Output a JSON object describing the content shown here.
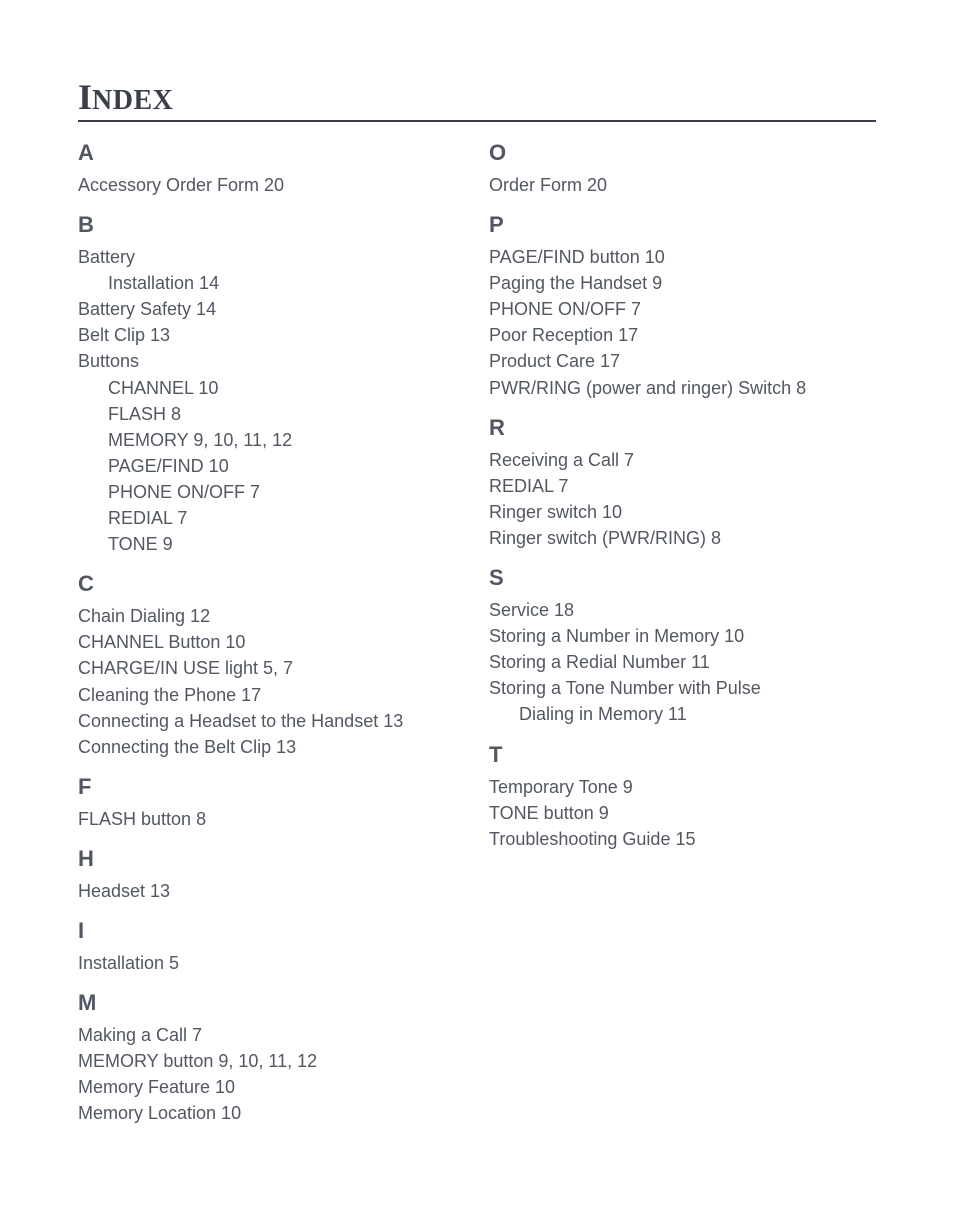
{
  "title_main": "I",
  "title_rest": "NDEX",
  "left_column": [
    {
      "type": "letter",
      "text": "A"
    },
    {
      "type": "entry",
      "text": "Accessory Order Form  20"
    },
    {
      "type": "letter",
      "text": "B"
    },
    {
      "type": "entry",
      "text": "Battery"
    },
    {
      "type": "sub",
      "text": "Installation  14"
    },
    {
      "type": "entry",
      "text": "Battery Safety  14"
    },
    {
      "type": "entry",
      "text": "Belt Clip  13"
    },
    {
      "type": "entry",
      "text": "Buttons"
    },
    {
      "type": "sub",
      "text": "CHANNEL  10"
    },
    {
      "type": "sub",
      "text": "FLASH  8"
    },
    {
      "type": "sub",
      "text": "MEMORY  9,  10,  11,  12"
    },
    {
      "type": "sub",
      "text": "PAGE/FIND  10"
    },
    {
      "type": "sub",
      "text": "PHONE ON/OFF  7"
    },
    {
      "type": "sub",
      "text": "REDIAL  7"
    },
    {
      "type": "sub",
      "text": "TONE  9"
    },
    {
      "type": "letter",
      "text": "C"
    },
    {
      "type": "entry",
      "text": "Chain Dialing  12"
    },
    {
      "type": "entry",
      "text": "CHANNEL Button  10"
    },
    {
      "type": "entry",
      "text": "CHARGE/IN USE light  5,  7"
    },
    {
      "type": "entry",
      "text": "Cleaning the Phone  17"
    },
    {
      "type": "entry",
      "text": "Connecting a Headset to the Handset  13"
    },
    {
      "type": "entry",
      "text": "Connecting the Belt Clip  13"
    },
    {
      "type": "letter",
      "text": "F"
    },
    {
      "type": "entry",
      "text": "FLASH button  8"
    },
    {
      "type": "letter",
      "text": "H"
    },
    {
      "type": "entry",
      "text": "Headset  13"
    },
    {
      "type": "letter",
      "text": "I"
    },
    {
      "type": "entry",
      "text": "Installation  5"
    },
    {
      "type": "letter",
      "text": "M"
    },
    {
      "type": "entry",
      "text": "Making a Call  7"
    },
    {
      "type": "entry",
      "text": "MEMORY button  9,  10,  11,  12"
    },
    {
      "type": "entry",
      "text": "Memory Feature  10"
    },
    {
      "type": "entry",
      "text": "Memory Location  10"
    }
  ],
  "right_column": [
    {
      "type": "letter",
      "text": "O"
    },
    {
      "type": "entry",
      "text": "Order Form  20"
    },
    {
      "type": "letter",
      "text": "P"
    },
    {
      "type": "entry",
      "text": "PAGE/FIND button  10"
    },
    {
      "type": "entry",
      "text": "Paging the Handset  9"
    },
    {
      "type": "entry",
      "text": "PHONE ON/OFF  7"
    },
    {
      "type": "entry",
      "text": "Poor Reception  17"
    },
    {
      "type": "entry",
      "text": "Product Care  17"
    },
    {
      "type": "entry",
      "text": "PWR/RING (power and ringer) Switch  8"
    },
    {
      "type": "letter",
      "text": "R"
    },
    {
      "type": "entry",
      "text": "Receiving a Call  7"
    },
    {
      "type": "entry",
      "text": "REDIAL  7"
    },
    {
      "type": "entry",
      "text": "Ringer switch  10"
    },
    {
      "type": "entry",
      "text": "Ringer switch (PWR/RING)  8"
    },
    {
      "type": "letter",
      "text": "S"
    },
    {
      "type": "entry",
      "text": "Service  18"
    },
    {
      "type": "entry",
      "text": "Storing a Number in Memory  10"
    },
    {
      "type": "entry",
      "text": "Storing a Redial Number  11"
    },
    {
      "type": "entry",
      "text": "Storing a Tone Number with Pulse"
    },
    {
      "type": "sub",
      "text": "Dialing in Memory  11"
    },
    {
      "type": "letter",
      "text": "T"
    },
    {
      "type": "entry",
      "text": "Temporary Tone  9"
    },
    {
      "type": "entry",
      "text": "TONE button  9"
    },
    {
      "type": "entry",
      "text": "Troubleshooting Guide  15"
    }
  ]
}
